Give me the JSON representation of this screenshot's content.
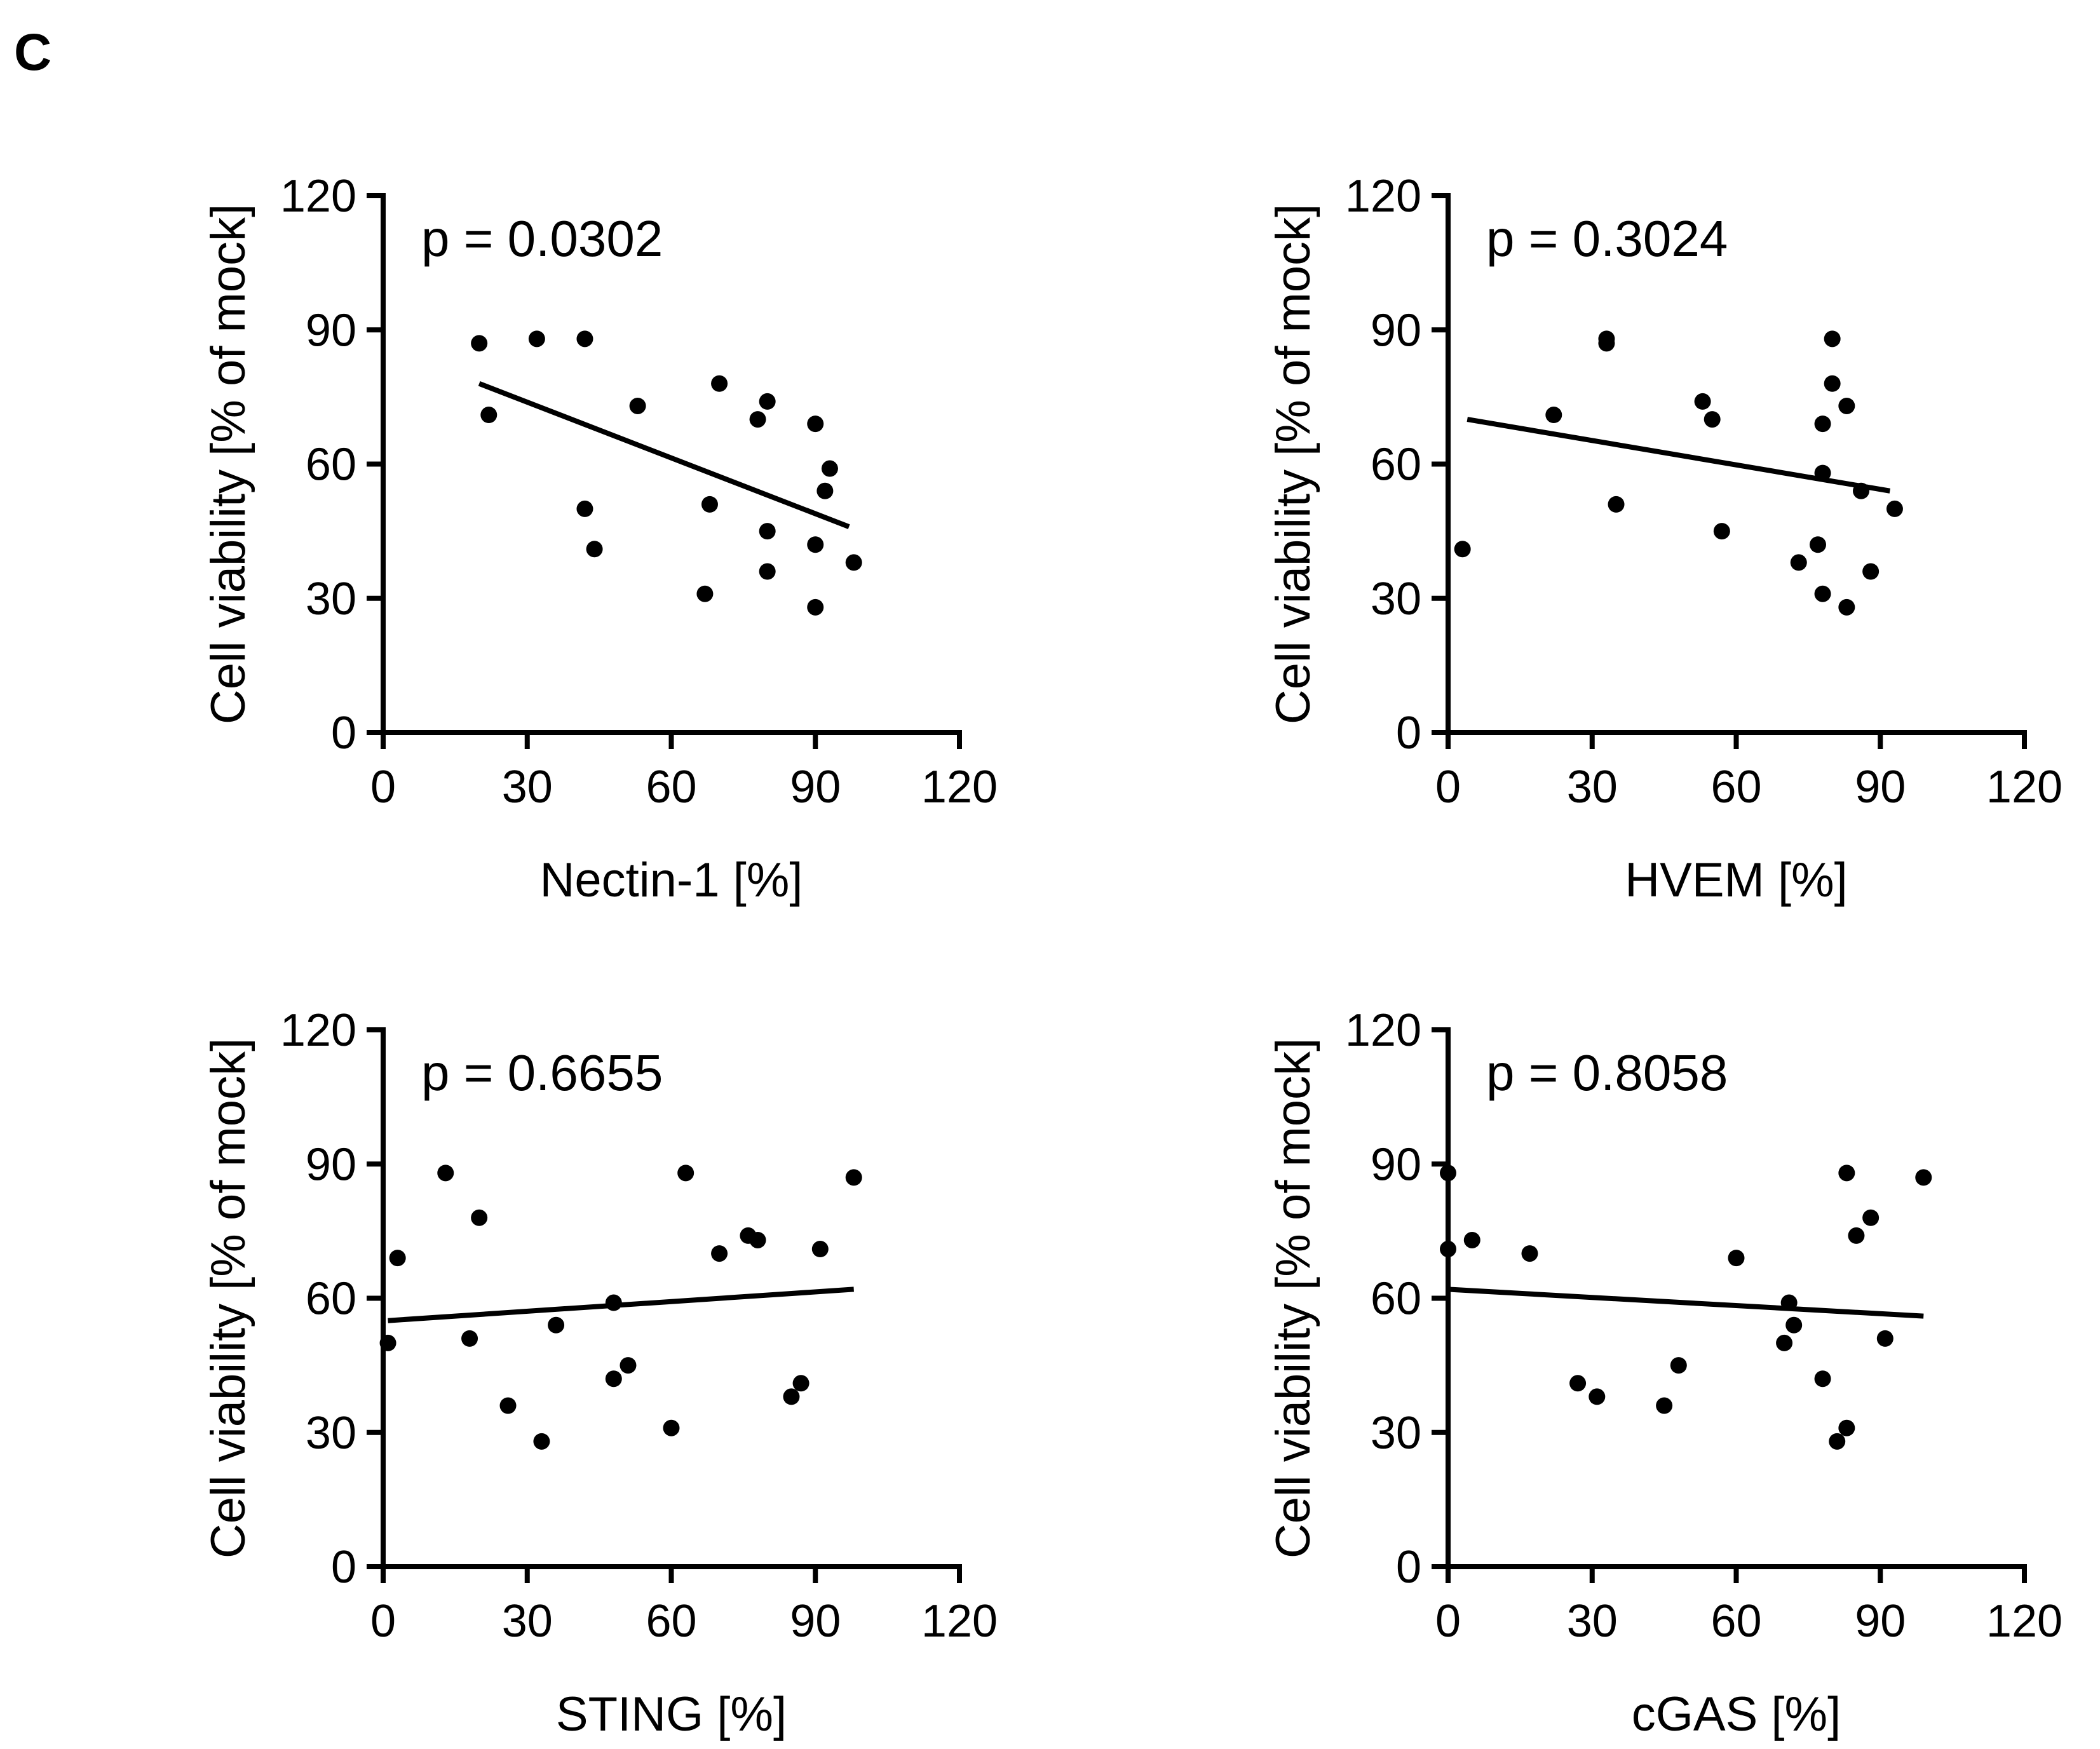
{
  "figure": {
    "panel_letter": "C"
  },
  "colors": {
    "ink": "#000000",
    "background": "#ffffff"
  },
  "chart_data": [
    {
      "type": "scatter",
      "title": "",
      "annotation": "p = 0.0302",
      "xlabel": "Nectin-1 [%]",
      "ylabel": "Cell viability [% of mock]",
      "xlim": [
        0,
        120
      ],
      "ylim": [
        0,
        120
      ],
      "xticks": [
        "0",
        "30",
        "60",
        "90",
        "120"
      ],
      "yticks": [
        "0",
        "30",
        "60",
        "90",
        "120"
      ],
      "points": [
        [
          20,
          87
        ],
        [
          22,
          71
        ],
        [
          32,
          88
        ],
        [
          42,
          88
        ],
        [
          42,
          50
        ],
        [
          44,
          41
        ],
        [
          53,
          73
        ],
        [
          67,
          31
        ],
        [
          68,
          51
        ],
        [
          70,
          78
        ],
        [
          78,
          70
        ],
        [
          80,
          74
        ],
        [
          80,
          45
        ],
        [
          80,
          36
        ],
        [
          90,
          69
        ],
        [
          90,
          42
        ],
        [
          90,
          28
        ],
        [
          92,
          54
        ],
        [
          93,
          59
        ],
        [
          98,
          38
        ]
      ],
      "fit": {
        "x": [
          20,
          97
        ],
        "y": [
          78,
          46
        ]
      }
    },
    {
      "type": "scatter",
      "title": "",
      "annotation": "p = 0.3024",
      "xlabel": "HVEM [%]",
      "ylabel": "Cell viability [% of mock]",
      "xlim": [
        0,
        120
      ],
      "ylim": [
        0,
        120
      ],
      "xticks": [
        "0",
        "30",
        "60",
        "90",
        "120"
      ],
      "yticks": [
        "0",
        "30",
        "60",
        "90",
        "120"
      ],
      "points": [
        [
          3,
          41
        ],
        [
          22,
          71
        ],
        [
          33,
          88
        ],
        [
          33,
          87
        ],
        [
          35,
          51
        ],
        [
          53,
          74
        ],
        [
          55,
          70
        ],
        [
          57,
          45
        ],
        [
          73,
          38
        ],
        [
          77,
          42
        ],
        [
          78,
          31
        ],
        [
          78,
          58
        ],
        [
          78,
          69
        ],
        [
          80,
          88
        ],
        [
          80,
          78
        ],
        [
          83,
          73
        ],
        [
          83,
          28
        ],
        [
          86,
          54
        ],
        [
          88,
          36
        ],
        [
          93,
          50
        ]
      ],
      "fit": {
        "x": [
          4,
          92
        ],
        "y": [
          70,
          54
        ]
      }
    },
    {
      "type": "scatter",
      "title": "",
      "annotation": "p = 0.6655",
      "xlabel": "STING [%]",
      "ylabel": "Cell viability [% of mock]",
      "xlim": [
        0,
        120
      ],
      "ylim": [
        0,
        120
      ],
      "xticks": [
        "0",
        "30",
        "60",
        "90",
        "120"
      ],
      "yticks": [
        "0",
        "30",
        "60",
        "90",
        "120"
      ],
      "points": [
        [
          1,
          50
        ],
        [
          3,
          69
        ],
        [
          13,
          88
        ],
        [
          18,
          51
        ],
        [
          20,
          78
        ],
        [
          26,
          36
        ],
        [
          33,
          28
        ],
        [
          36,
          54
        ],
        [
          48,
          59
        ],
        [
          48,
          42
        ],
        [
          51,
          45
        ],
        [
          60,
          31
        ],
        [
          63,
          88
        ],
        [
          70,
          70
        ],
        [
          76,
          74
        ],
        [
          78,
          73
        ],
        [
          85,
          38
        ],
        [
          87,
          41
        ],
        [
          91,
          71
        ],
        [
          98,
          87
        ]
      ],
      "fit": {
        "x": [
          1,
          98
        ],
        "y": [
          55,
          62
        ]
      }
    },
    {
      "type": "scatter",
      "title": "",
      "annotation": "p = 0.8058",
      "xlabel": "cGAS [%]",
      "ylabel": "Cell viability [% of mock]",
      "xlim": [
        0,
        120
      ],
      "ylim": [
        0,
        120
      ],
      "xticks": [
        "0",
        "30",
        "60",
        "90",
        "120"
      ],
      "yticks": [
        "0",
        "30",
        "60",
        "90",
        "120"
      ],
      "points": [
        [
          0,
          88
        ],
        [
          0,
          71
        ],
        [
          5,
          73
        ],
        [
          17,
          70
        ],
        [
          27,
          41
        ],
        [
          31,
          38
        ],
        [
          45,
          36
        ],
        [
          48,
          45
        ],
        [
          60,
          69
        ],
        [
          70,
          50
        ],
        [
          71,
          59
        ],
        [
          72,
          54
        ],
        [
          78,
          42
        ],
        [
          81,
          28
        ],
        [
          83,
          88
        ],
        [
          83,
          31
        ],
        [
          85,
          74
        ],
        [
          88,
          78
        ],
        [
          91,
          51
        ],
        [
          99,
          87
        ]
      ],
      "fit": {
        "x": [
          0,
          99
        ],
        "y": [
          62,
          56
        ]
      }
    }
  ]
}
